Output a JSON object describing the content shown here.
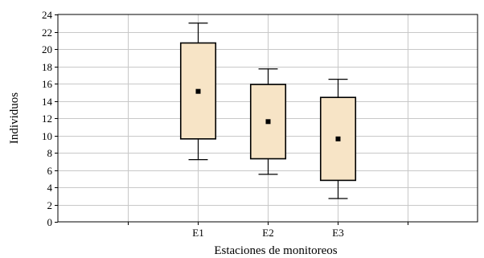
{
  "chart_data": {
    "type": "box",
    "xlabel": "Estaciones de monitoreos",
    "ylabel": "Individuos",
    "ylim": [
      0,
      24
    ],
    "yticks": [
      0,
      2,
      4,
      6,
      8,
      10,
      12,
      14,
      16,
      18,
      20,
      22,
      24
    ],
    "xlim": [
      0,
      6
    ],
    "grid": true,
    "categories": [
      "E1",
      "E2",
      "E3"
    ],
    "boxes": [
      {
        "category": "E1",
        "whisker_low": 7.2,
        "box_low": 9.6,
        "median": 15.1,
        "box_high": 20.7,
        "whisker_high": 23.0
      },
      {
        "category": "E2",
        "whisker_low": 5.5,
        "box_low": 7.3,
        "median": 11.6,
        "box_high": 15.9,
        "whisker_high": 17.7
      },
      {
        "category": "E3",
        "whisker_low": 2.7,
        "box_low": 4.8,
        "median": 9.6,
        "box_high": 14.4,
        "whisker_high": 16.5
      }
    ],
    "colors": {
      "box_fill": "#f7e4c6",
      "stroke": "#000000",
      "grid": "#c8c8c8"
    }
  }
}
